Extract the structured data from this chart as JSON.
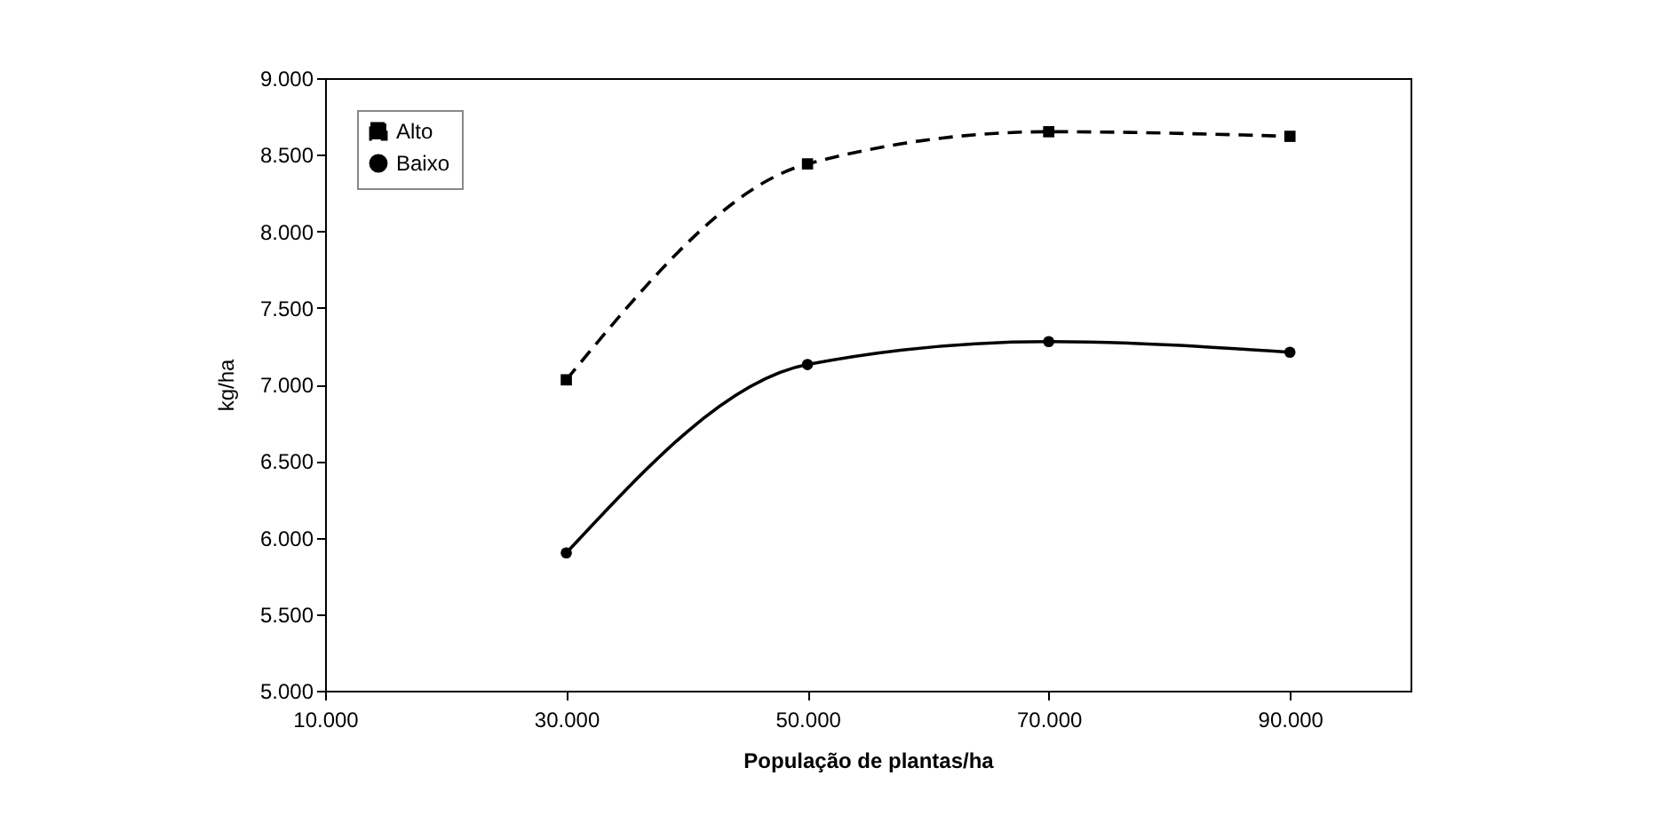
{
  "chart_data": {
    "type": "line",
    "xlabel": "População de plantas/ha",
    "ylabel": "kg/ha",
    "x": [
      30000,
      50000,
      70000,
      90000
    ],
    "series": [
      {
        "name": "Alto",
        "color": "#000000",
        "marker": "square",
        "line_style": "dashed",
        "values": [
          7030,
          8440,
          8650,
          8620
        ]
      },
      {
        "name": "Baixo",
        "color": "#000000",
        "marker": "circle",
        "line_style": "solid",
        "values": [
          5900,
          7130,
          7280,
          7210
        ]
      }
    ],
    "xlim": [
      10000,
      100000
    ],
    "xticks": [
      {
        "value": 10000,
        "label": "10.000"
      },
      {
        "value": 30000,
        "label": "30.000"
      },
      {
        "value": 50000,
        "label": "50.000"
      },
      {
        "value": 70000,
        "label": "70.000"
      },
      {
        "value": 90000,
        "label": "90.000"
      }
    ],
    "ylim": [
      5000,
      9000
    ],
    "yticks": [
      {
        "value": 5000,
        "label": "5.000"
      },
      {
        "value": 5500,
        "label": "5.500"
      },
      {
        "value": 6000,
        "label": "6.000"
      },
      {
        "value": 6500,
        "label": "6.500"
      },
      {
        "value": 7000,
        "label": "7.000"
      },
      {
        "value": 7500,
        "label": "7.500"
      },
      {
        "value": 8000,
        "label": "8.000"
      },
      {
        "value": 8500,
        "label": "8.500"
      },
      {
        "value": 9000,
        "label": "9.000"
      }
    ],
    "grid": false,
    "legend": "top left"
  }
}
